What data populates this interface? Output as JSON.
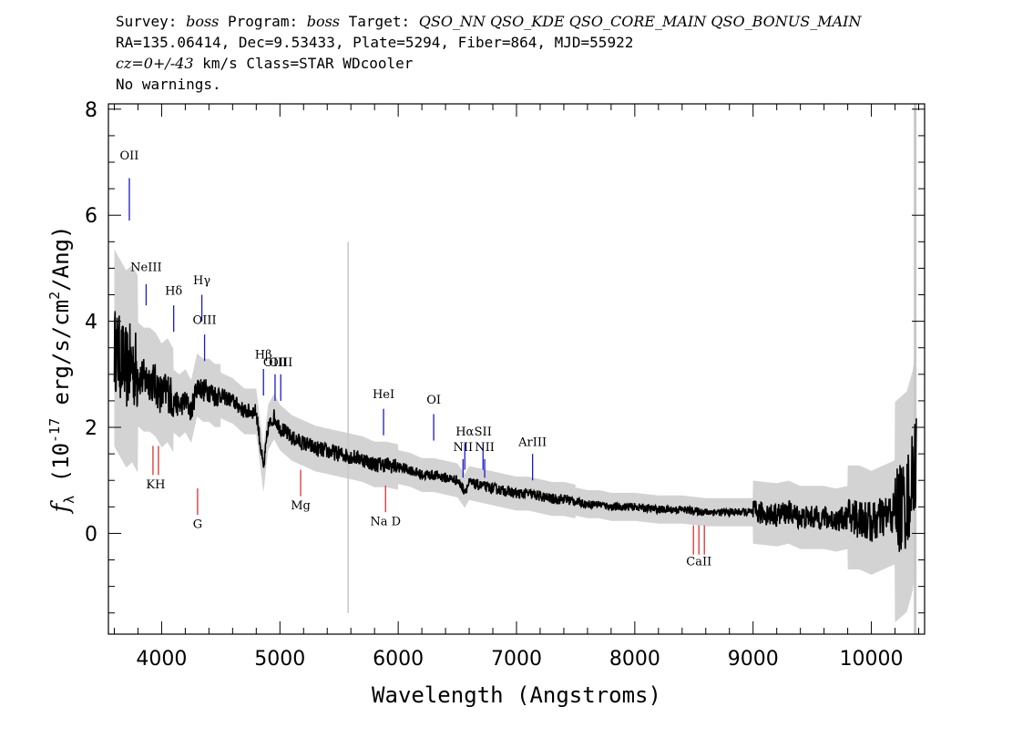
{
  "header": {
    "survey_label": "Survey:",
    "survey": "boss",
    "program_label": "Program:",
    "program": "boss",
    "target_label": "Target:",
    "target": "QSO_NN QSO_KDE QSO_CORE_MAIN QSO_BONUS_MAIN",
    "line2": "RA=135.06414, Dec=9.53433, Plate=5294, Fiber=864, MJD=55922",
    "cz": "cz=0+/-43",
    "line3_rest": " km/s Class=STAR WDcooler",
    "line4": "No warnings."
  },
  "chart_data": {
    "type": "line",
    "xlabel": "Wavelength (Angstroms)",
    "ylabel": "f_λ (10^-17 erg/s/cm^2/Ang)",
    "xlim": [
      3550,
      10450
    ],
    "ylim": [
      -1.9,
      8.1
    ],
    "x_ticks": [
      4000,
      5000,
      6000,
      7000,
      8000,
      9000,
      10000
    ],
    "x_tick_labels": [
      "4000",
      "5000",
      "6000",
      "7000",
      "8000",
      "9000",
      "10000"
    ],
    "y_ticks": [
      0,
      2,
      4,
      6,
      8
    ],
    "y_tick_labels": [
      "0",
      "2",
      "4",
      "6",
      "8"
    ],
    "series": [
      {
        "color": "#000000",
        "x": [
          3600,
          3650,
          3700,
          3750,
          3800,
          3850,
          3900,
          3950,
          4000,
          4050,
          4100,
          4150,
          4200,
          4250,
          4300,
          4350,
          4400,
          4450,
          4500,
          4600,
          4700,
          4800,
          4861,
          4900,
          4950,
          5000,
          5100,
          5200,
          5300,
          5400,
          5500,
          5600,
          5700,
          5800,
          5900,
          6000,
          6100,
          6200,
          6300,
          6400,
          6500,
          6563,
          6600,
          6700,
          6800,
          6900,
          7000,
          7100,
          7200,
          7300,
          7400,
          7500,
          7600,
          7700,
          7800,
          7900,
          8000,
          8200,
          8400,
          8600,
          8800,
          9000,
          9200,
          9300,
          9400,
          9500,
          9600,
          9700,
          9800,
          9900,
          10000,
          10100,
          10200,
          10300,
          10350,
          10380
        ],
        "y": [
          3.5,
          3.3,
          3.1,
          3.2,
          3.0,
          2.9,
          2.9,
          2.8,
          2.6,
          2.7,
          2.5,
          2.4,
          2.5,
          2.3,
          2.8,
          2.7,
          2.7,
          2.6,
          2.6,
          2.5,
          2.3,
          2.3,
          1.2,
          2.0,
          2.2,
          2.0,
          1.8,
          1.7,
          1.6,
          1.55,
          1.5,
          1.45,
          1.4,
          1.3,
          1.3,
          1.25,
          1.2,
          1.1,
          1.1,
          1.05,
          1.0,
          0.8,
          0.95,
          0.9,
          0.85,
          0.8,
          0.75,
          0.75,
          0.7,
          0.65,
          0.65,
          0.6,
          0.55,
          0.55,
          0.5,
          0.5,
          0.5,
          0.45,
          0.45,
          0.4,
          0.4,
          0.4,
          0.35,
          0.4,
          0.3,
          0.3,
          0.3,
          0.25,
          0.3,
          0.3,
          0.2,
          0.3,
          0.4,
          0.6,
          1.0,
          1.5
        ]
      }
    ],
    "line_labels": [
      {
        "label": "OII",
        "x": 3727,
        "y0": 6.7,
        "y1": 5.9,
        "color": "blue",
        "text_y": 7.05
      },
      {
        "label": "NeIII",
        "x": 3869,
        "y0": 4.7,
        "y1": 4.3,
        "color": "blue",
        "text_y": 4.95
      },
      {
        "label": "Hδ",
        "x": 4102,
        "y0": 4.3,
        "y1": 3.8,
        "color": "blue",
        "text_y": 4.5
      },
      {
        "label": "Hγ",
        "x": 4340,
        "y0": 4.5,
        "y1": 4.0,
        "color": "blue",
        "text_y": 4.7
      },
      {
        "label": "OIII",
        "x": 4363,
        "y0": 3.75,
        "y1": 3.25,
        "color": "blue",
        "text_y": 3.95
      },
      {
        "label": "Hβ",
        "x": 4861,
        "y0": 3.1,
        "y1": 2.6,
        "color": "blue",
        "text_y": 3.3
      },
      {
        "label": "OIII",
        "x": 4959,
        "y0": 3.0,
        "y1": 2.5,
        "color": "blue",
        "text_y": 3.15
      },
      {
        "label": "OIII",
        "x": 5007,
        "y0": 3.0,
        "y1": 2.5,
        "color": "blue",
        "text_y": 3.15
      },
      {
        "label": "HeI",
        "x": 5876,
        "y0": 2.35,
        "y1": 1.85,
        "color": "blue",
        "text_y": 2.55
      },
      {
        "label": "OI",
        "x": 6300,
        "y0": 2.25,
        "y1": 1.75,
        "color": "blue",
        "text_y": 2.45
      },
      {
        "label": "NII",
        "x": 6548,
        "y0": 1.4,
        "y1": 1.05,
        "color": "blue",
        "text_y": 1.55
      },
      {
        "label": "Hα",
        "x": 6563,
        "y0": 1.7,
        "y1": 1.2,
        "color": "blue",
        "text_y": 1.85
      },
      {
        "label": "SII",
        "x": 6717,
        "y0": 1.7,
        "y1": 1.2,
        "color": "blue",
        "text_y": 1.85
      },
      {
        "label": "NII",
        "x": 6731,
        "y0": 1.4,
        "y1": 1.05,
        "color": "blue",
        "text_y": 1.55
      },
      {
        "label": "ArIII",
        "x": 7136,
        "y0": 1.5,
        "y1": 1.0,
        "color": "blue",
        "text_y": 1.65
      },
      {
        "label": "KH",
        "x": 3950,
        "y0": 1.65,
        "y1": 1.1,
        "color": "red",
        "text_y": 0.85
      },
      {
        "label": "G",
        "x": 4304,
        "y0": 0.85,
        "y1": 0.35,
        "color": "red",
        "text_y": 0.1
      },
      {
        "label": "Mg",
        "x": 5175,
        "y0": 1.2,
        "y1": 0.7,
        "color": "red",
        "text_y": 0.45
      },
      {
        "label": "Na D",
        "x": 5893,
        "y0": 0.9,
        "y1": 0.4,
        "color": "red",
        "text_y": 0.15
      },
      {
        "label": "CaII",
        "x": 8542,
        "y0": 0.15,
        "y1": -0.4,
        "color": "red",
        "text_y": -0.6
      }
    ]
  },
  "colors": {
    "flux": "#000000",
    "error": "#c8c8c8",
    "emission": "#1a1acc",
    "absorption": "#e03030"
  }
}
